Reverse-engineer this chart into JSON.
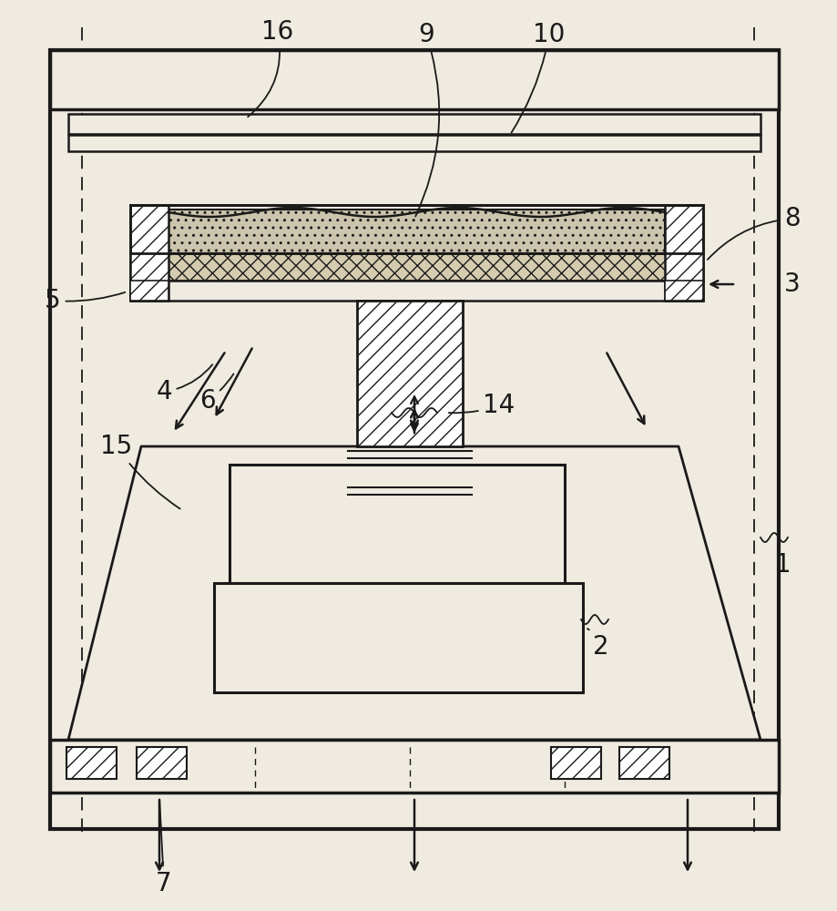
{
  "bg_color": "#f0ebe0",
  "line_color": "#1a1a1a",
  "fig_width": 9.2,
  "fig_height": 10.0,
  "label_fontsize": 20
}
